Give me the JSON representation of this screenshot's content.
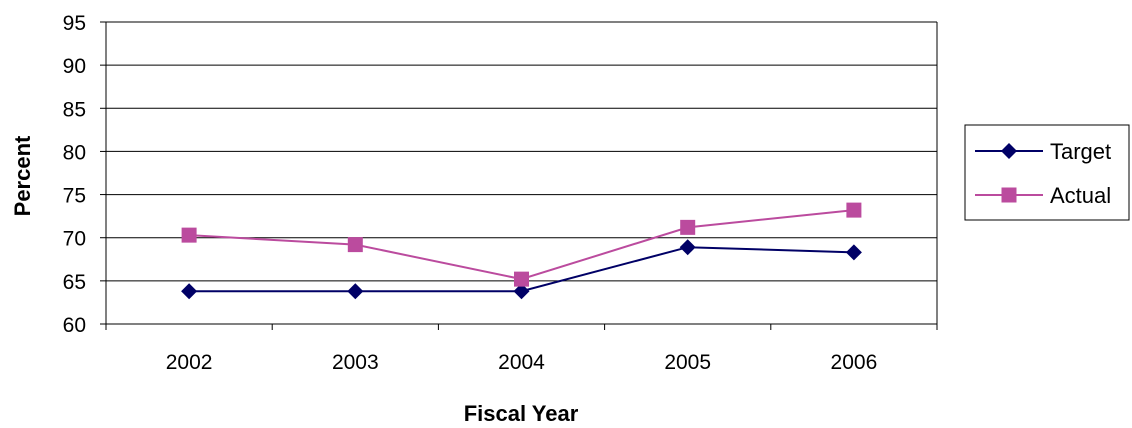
{
  "chart_data": {
    "type": "line",
    "xlabel": "Fiscal Year",
    "ylabel": "Percent",
    "categories": [
      "2002",
      "2003",
      "2004",
      "2005",
      "2006"
    ],
    "ylim": [
      60,
      95
    ],
    "yticks": [
      60,
      65,
      70,
      75,
      80,
      85,
      90,
      95
    ],
    "grid": true,
    "legend_position": "right",
    "series": [
      {
        "name": "Target",
        "values": [
          63.8,
          63.8,
          63.8,
          68.9,
          68.3
        ],
        "color": "#000066",
        "marker": "diamond"
      },
      {
        "name": "Actual",
        "values": [
          70.3,
          69.2,
          65.2,
          71.2,
          73.2
        ],
        "color": "#bb4b9e",
        "marker": "square"
      }
    ]
  }
}
